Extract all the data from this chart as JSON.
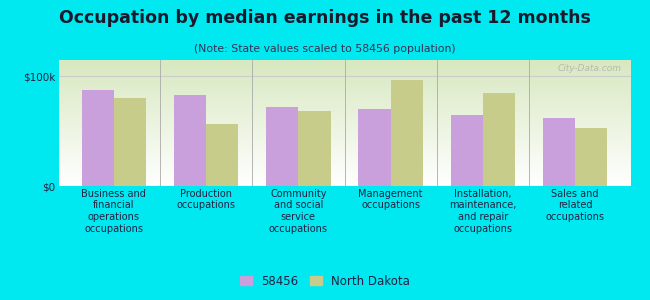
{
  "title": "Occupation by median earnings in the past 12 months",
  "subtitle": "(Note: State values scaled to 58456 population)",
  "categories": [
    "Business and\nfinancial\noperations\noccupations",
    "Production\noccupations",
    "Community\nand social\nservice\noccupations",
    "Management\noccupations",
    "Installation,\nmaintenance,\nand repair\noccupations",
    "Sales and\nrelated\noccupations"
  ],
  "values_58456": [
    88000,
    83000,
    72000,
    70000,
    65000,
    62000
  ],
  "values_nd": [
    80000,
    57000,
    68000,
    97000,
    85000,
    53000
  ],
  "color_58456": "#c9a0dc",
  "color_nd": "#c8cc8a",
  "bar_width": 0.35,
  "ylim": [
    0,
    115000
  ],
  "yticks": [
    0,
    100000
  ],
  "ytick_labels": [
    "$0",
    "$100k"
  ],
  "background_outer": "#00e8f0",
  "background_inner_top": "#ffffff",
  "background_inner_bottom": "#d8e8c0",
  "legend_labels": [
    "58456",
    "North Dakota"
  ],
  "watermark": "City-Data.com",
  "title_color": "#1a1a2e",
  "subtitle_color": "#333355",
  "label_color": "#222244"
}
